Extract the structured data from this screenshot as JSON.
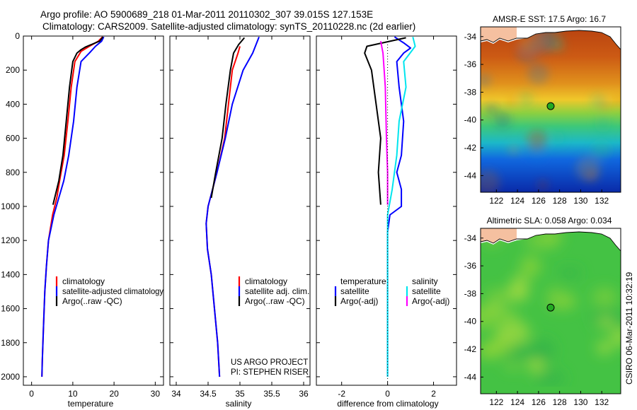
{
  "header": {
    "line1": "Argo profile: AO 5900689_218 01-Mar-2011 20110302_307 39.015S 127.153E",
    "line2": "Climatology: CARS2009. Satellite-adjusted climatology: synTS_20110228.nc (2d earlier)"
  },
  "credits": {
    "project": "US ARGO PROJECT",
    "pi": "PI: STEPHEN RISER",
    "stamp": "CSIRO 06-Mar-2011 10:32:19"
  },
  "colors": {
    "climatology": "#ff0000",
    "satellite": "#0000ff",
    "argo": "#000000",
    "satellite_diff": "#00e5ee",
    "argo_diff": "#ff00ff",
    "marker": "#22aa22"
  },
  "chart_data": [
    {
      "type": "line",
      "id": "temperature",
      "xlabel": "temperature",
      "xlim": [
        -2,
        32
      ],
      "ylim": [
        2050,
        0
      ],
      "xticks": [
        "0",
        "10",
        "20",
        "30"
      ],
      "xtick_values": [
        0,
        10,
        20,
        30
      ],
      "yticks": [
        "0",
        "200",
        "400",
        "600",
        "800",
        "1000",
        "1200",
        "1400",
        "1600",
        "1800",
        "2000"
      ],
      "ytick_values": [
        0,
        200,
        400,
        600,
        800,
        1000,
        1200,
        1400,
        1600,
        1800,
        2000
      ],
      "legend": [
        "climatology",
        "satellite-adjusted climatology",
        "Argo(..raw -QC)"
      ],
      "series": [
        {
          "name": "climatology",
          "color": "#ff0000",
          "points": [
            [
              17.2,
              5
            ],
            [
              16.2,
              30
            ],
            [
              14,
              60
            ],
            [
              12,
              90
            ],
            [
              10.5,
              150
            ],
            [
              9.6,
              300
            ],
            [
              8.8,
              500
            ],
            [
              7.9,
              700
            ],
            [
              6.8,
              850
            ],
            [
              6.1,
              950
            ],
            [
              5.1,
              1050
            ],
            [
              4.1,
              1200
            ],
            [
              3.6,
              1350
            ],
            [
              3.2,
              1500
            ],
            [
              2.9,
              1700
            ],
            [
              2.6,
              1900
            ],
            [
              2.5,
              2000
            ]
          ]
        },
        {
          "name": "satellite-adjusted climatology",
          "color": "#0000ff",
          "points": [
            [
              17.5,
              5
            ],
            [
              17,
              30
            ],
            [
              15.5,
              60
            ],
            [
              14,
              100
            ],
            [
              12,
              150
            ],
            [
              11,
              300
            ],
            [
              10.2,
              500
            ],
            [
              9,
              700
            ],
            [
              7.8,
              850
            ],
            [
              6.6,
              950
            ],
            [
              5.4,
              1050
            ],
            [
              4.1,
              1200
            ],
            [
              3.6,
              1350
            ],
            [
              3.2,
              1500
            ],
            [
              2.9,
              1700
            ],
            [
              2.6,
              1900
            ],
            [
              2.5,
              2000
            ]
          ]
        },
        {
          "name": "Argo(..raw -QC)",
          "color": "#000000",
          "points": [
            [
              17.3,
              5
            ],
            [
              16.5,
              30
            ],
            [
              14.5,
              50
            ],
            [
              13,
              65
            ],
            [
              12,
              80
            ],
            [
              11,
              100
            ],
            [
              10,
              150
            ],
            [
              9.2,
              300
            ],
            [
              8.4,
              500
            ],
            [
              7.6,
              700
            ],
            [
              6.6,
              850
            ],
            [
              5.2,
              990
            ]
          ]
        }
      ]
    },
    {
      "type": "line",
      "id": "salinity",
      "xlabel": "salinity",
      "xlim": [
        33.9,
        36.1
      ],
      "ylim": [
        2050,
        0
      ],
      "xticks": [
        "34",
        "34.5",
        "35",
        "35.5",
        "36"
      ],
      "xtick_values": [
        34,
        34.5,
        35,
        35.5,
        36
      ],
      "legend": [
        "climatology",
        "satellite adj. clim.",
        "Argo(..raw -QC)"
      ],
      "series": [
        {
          "name": "climatology",
          "color": "#ff0000",
          "points": [
            [
              35.0,
              60
            ],
            [
              34.97,
              100
            ],
            [
              34.88,
              200
            ],
            [
              34.82,
              400
            ],
            [
              34.76,
              600
            ],
            [
              34.64,
              800
            ],
            [
              34.5,
              1000
            ],
            [
              34.47,
              1100
            ],
            [
              34.49,
              1250
            ],
            [
              34.55,
              1400
            ],
            [
              34.6,
              1600
            ],
            [
              34.65,
              1800
            ],
            [
              34.68,
              2000
            ]
          ]
        },
        {
          "name": "satellite adj. clim.",
          "color": "#0000ff",
          "points": [
            [
              35.3,
              5
            ],
            [
              35.2,
              100
            ],
            [
              35.05,
              200
            ],
            [
              34.88,
              400
            ],
            [
              34.77,
              600
            ],
            [
              34.64,
              800
            ],
            [
              34.5,
              1000
            ],
            [
              34.47,
              1100
            ],
            [
              34.49,
              1250
            ],
            [
              34.55,
              1400
            ],
            [
              34.6,
              1600
            ],
            [
              34.65,
              1800
            ],
            [
              34.68,
              2000
            ]
          ]
        },
        {
          "name": "Argo(..raw -QC)",
          "color": "#000000",
          "points": [
            [
              35.07,
              10
            ],
            [
              34.98,
              50
            ],
            [
              34.9,
              100
            ],
            [
              34.85,
              200
            ],
            [
              34.78,
              400
            ],
            [
              34.72,
              600
            ],
            [
              34.62,
              800
            ],
            [
              34.55,
              950
            ]
          ]
        }
      ]
    },
    {
      "type": "line",
      "id": "difference",
      "xlabel": "difference from climatology",
      "xlim": [
        -3.1,
        3.0
      ],
      "ylim": [
        2050,
        0
      ],
      "xticks": [
        "-2",
        "0",
        "2"
      ],
      "xtick_values": [
        -2,
        0,
        2
      ],
      "legend": [
        "temperature",
        "satellite",
        "Argo(-adj)",
        "salinity",
        "satellite",
        "Argo(-adj)"
      ],
      "series": [
        {
          "name": "temperature satellite",
          "color": "#0000ff",
          "points": [
            [
              0.3,
              5
            ],
            [
              0.7,
              40
            ],
            [
              1.0,
              70
            ],
            [
              0.7,
              100
            ],
            [
              0.4,
              150
            ],
            [
              0.5,
              300
            ],
            [
              0.7,
              500
            ],
            [
              0.6,
              700
            ],
            [
              0.4,
              800
            ],
            [
              0.6,
              900
            ],
            [
              0.6,
              1000
            ],
            [
              0.1,
              1050
            ],
            [
              0,
              1150
            ],
            [
              0,
              2000
            ]
          ]
        },
        {
          "name": "temperature Argo(-adj)",
          "color": "#000000",
          "points": [
            [
              0.8,
              10
            ],
            [
              -0.9,
              60
            ],
            [
              -1.0,
              100
            ],
            [
              -0.7,
              200
            ],
            [
              -0.5,
              400
            ],
            [
              -0.3,
              600
            ],
            [
              -0.4,
              800
            ],
            [
              -0.3,
              990
            ]
          ]
        },
        {
          "name": "salinity satellite",
          "color": "#00e5ee",
          "points": [
            [
              1.1,
              5
            ],
            [
              1.2,
              60
            ],
            [
              0.7,
              150
            ],
            [
              0.8,
              300
            ],
            [
              0.5,
              500
            ],
            [
              0.4,
              700
            ],
            [
              0.2,
              900
            ],
            [
              0,
              1050
            ],
            [
              0,
              2000
            ]
          ]
        },
        {
          "name": "salinity Argo(-adj)",
          "color": "#ff00ff",
          "points": [
            [
              -0.3,
              30
            ],
            [
              -0.2,
              100
            ],
            [
              -0.1,
              300
            ],
            [
              -0.05,
              600
            ],
            [
              0,
              800
            ],
            [
              0,
              990
            ]
          ]
        }
      ]
    },
    {
      "type": "heatmap",
      "id": "sst-map",
      "title": "AMSR-E SST: 17.5 Argo: 16.7",
      "xlim": [
        120.5,
        133.8
      ],
      "ylim": [
        -45.2,
        -33.3
      ],
      "xticks": [
        "122",
        "124",
        "126",
        "128",
        "130",
        "132"
      ],
      "xtick_values": [
        122,
        124,
        126,
        128,
        130,
        132
      ],
      "yticks": [
        "-34",
        "-36",
        "-38",
        "-40",
        "-42",
        "-44"
      ],
      "ytick_values": [
        -34,
        -36,
        -38,
        -40,
        -42,
        -44
      ],
      "marker": {
        "lon": 127.15,
        "lat": -39.0
      }
    },
    {
      "type": "heatmap",
      "id": "sla-map",
      "title": "Altimetric SLA: 0.058 Argo: 0.034",
      "xlim": [
        120.5,
        133.8
      ],
      "ylim": [
        -45.2,
        -33.3
      ],
      "xticks": [
        "122",
        "124",
        "126",
        "128",
        "130",
        "132"
      ],
      "xtick_values": [
        122,
        124,
        126,
        128,
        130,
        132
      ],
      "yticks": [
        "-34",
        "-36",
        "-38",
        "-40",
        "-42",
        "-44"
      ],
      "ytick_values": [
        -34,
        -36,
        -38,
        -40,
        -42,
        -44
      ],
      "marker": {
        "lon": 127.15,
        "lat": -39.0
      }
    }
  ]
}
